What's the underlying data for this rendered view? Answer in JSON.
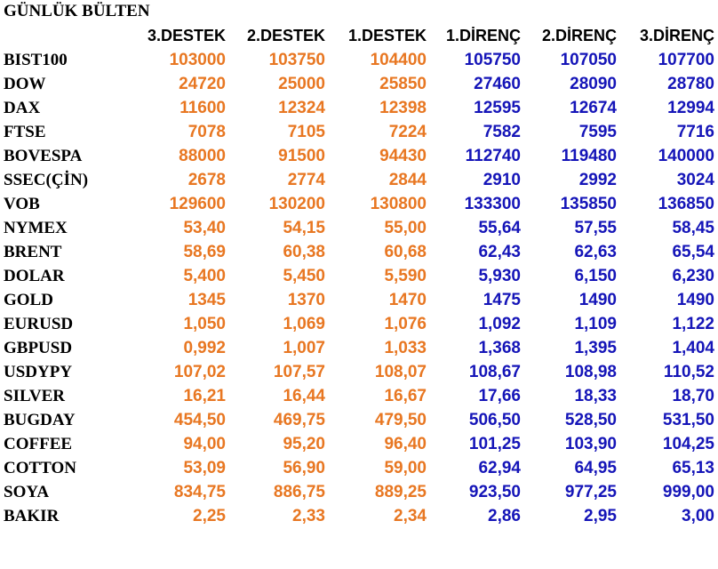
{
  "title": "GÜNLÜK BÜLTEN",
  "colors": {
    "support": "#E87722",
    "resistance": "#1515B8",
    "text": "#000000"
  },
  "columns": [
    "3.DESTEK",
    "2.DESTEK",
    "1.DESTEK",
    "1.DİRENÇ",
    "2.DİRENÇ",
    "3.DİRENÇ"
  ],
  "rows": [
    {
      "name": "BIST100",
      "values": [
        "103000",
        "103750",
        "104400",
        "105750",
        "107050",
        "107700"
      ]
    },
    {
      "name": "DOW",
      "values": [
        "24720",
        "25000",
        "25850",
        "27460",
        "28090",
        "28780"
      ]
    },
    {
      "name": "DAX",
      "values": [
        "11600",
        "12324",
        "12398",
        "12595",
        "12674",
        "12994"
      ]
    },
    {
      "name": "FTSE",
      "values": [
        "7078",
        "7105",
        "7224",
        "7582",
        "7595",
        "7716"
      ]
    },
    {
      "name": "BOVESPA",
      "values": [
        "88000",
        "91500",
        "94430",
        "112740",
        "119480",
        "140000"
      ]
    },
    {
      "name": "SSEC(ÇİN)",
      "values": [
        "2678",
        "2774",
        "2844",
        "2910",
        "2992",
        "3024"
      ]
    },
    {
      "name": "VOB",
      "values": [
        "129600",
        "130200",
        "130800",
        "133300",
        "135850",
        "136850"
      ]
    },
    {
      "name": "NYMEX",
      "values": [
        "53,40",
        "54,15",
        "55,00",
        "55,64",
        "57,55",
        "58,45"
      ]
    },
    {
      "name": "BRENT",
      "values": [
        "58,69",
        "60,38",
        "60,68",
        "62,43",
        "62,63",
        "65,54"
      ]
    },
    {
      "name": "DOLAR",
      "values": [
        "5,400",
        "5,450",
        "5,590",
        "5,930",
        "6,150",
        "6,230"
      ]
    },
    {
      "name": "GOLD",
      "values": [
        "1345",
        "1370",
        "1470",
        "1475",
        "1490",
        "1490"
      ]
    },
    {
      "name": "EURUSD",
      "values": [
        "1,050",
        "1,069",
        "1,076",
        "1,092",
        "1,109",
        "1,122"
      ]
    },
    {
      "name": "GBPUSD",
      "values": [
        "0,992",
        "1,007",
        "1,033",
        "1,368",
        "1,395",
        "1,404"
      ]
    },
    {
      "name": "USDYPY",
      "values": [
        "107,02",
        "107,57",
        "108,07",
        "108,67",
        "108,98",
        "110,52"
      ]
    },
    {
      "name": "SILVER",
      "values": [
        "16,21",
        "16,44",
        "16,67",
        "17,66",
        "18,33",
        "18,70"
      ]
    },
    {
      "name": "BUGDAY",
      "values": [
        "454,50",
        "469,75",
        "479,50",
        "506,50",
        "528,50",
        "531,50"
      ]
    },
    {
      "name": "COFFEE",
      "values": [
        "94,00",
        "95,20",
        "96,40",
        "101,25",
        "103,90",
        "104,25"
      ]
    },
    {
      "name": "COTTON",
      "values": [
        "53,09",
        "56,90",
        "59,00",
        "62,94",
        "64,95",
        "65,13"
      ]
    },
    {
      "name": "SOYA",
      "values": [
        "834,75",
        "886,75",
        "889,25",
        "923,50",
        "977,25",
        "999,00"
      ]
    },
    {
      "name": "BAKIR",
      "values": [
        "2,25",
        "2,33",
        "2,34",
        "2,86",
        "2,95",
        "3,00"
      ]
    }
  ]
}
